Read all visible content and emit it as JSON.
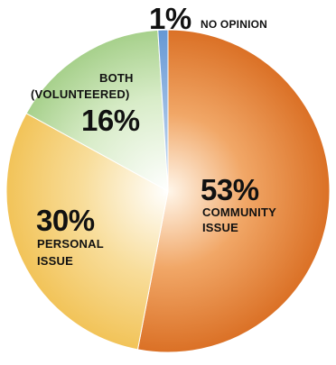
{
  "chart_data": {
    "type": "pie",
    "title": "",
    "slices": [
      {
        "key": "community",
        "value": 53,
        "label": "53%",
        "name_lines": [
          "COMMUNITY",
          "ISSUE"
        ],
        "color": "#dc762a"
      },
      {
        "key": "personal",
        "value": 30,
        "label": "30%",
        "name_lines": [
          "PERSONAL",
          "ISSUE"
        ],
        "color": "#f3c65e"
      },
      {
        "key": "both",
        "value": 16,
        "label": "16%",
        "name_lines": [
          "BOTH",
          "(VOLUNTEERED)"
        ],
        "color": "#a8d08c"
      },
      {
        "key": "no_opinion",
        "value": 1,
        "label": "1%",
        "name_lines": [
          "NO OPINION"
        ],
        "color": "#6f9fd8"
      }
    ]
  }
}
